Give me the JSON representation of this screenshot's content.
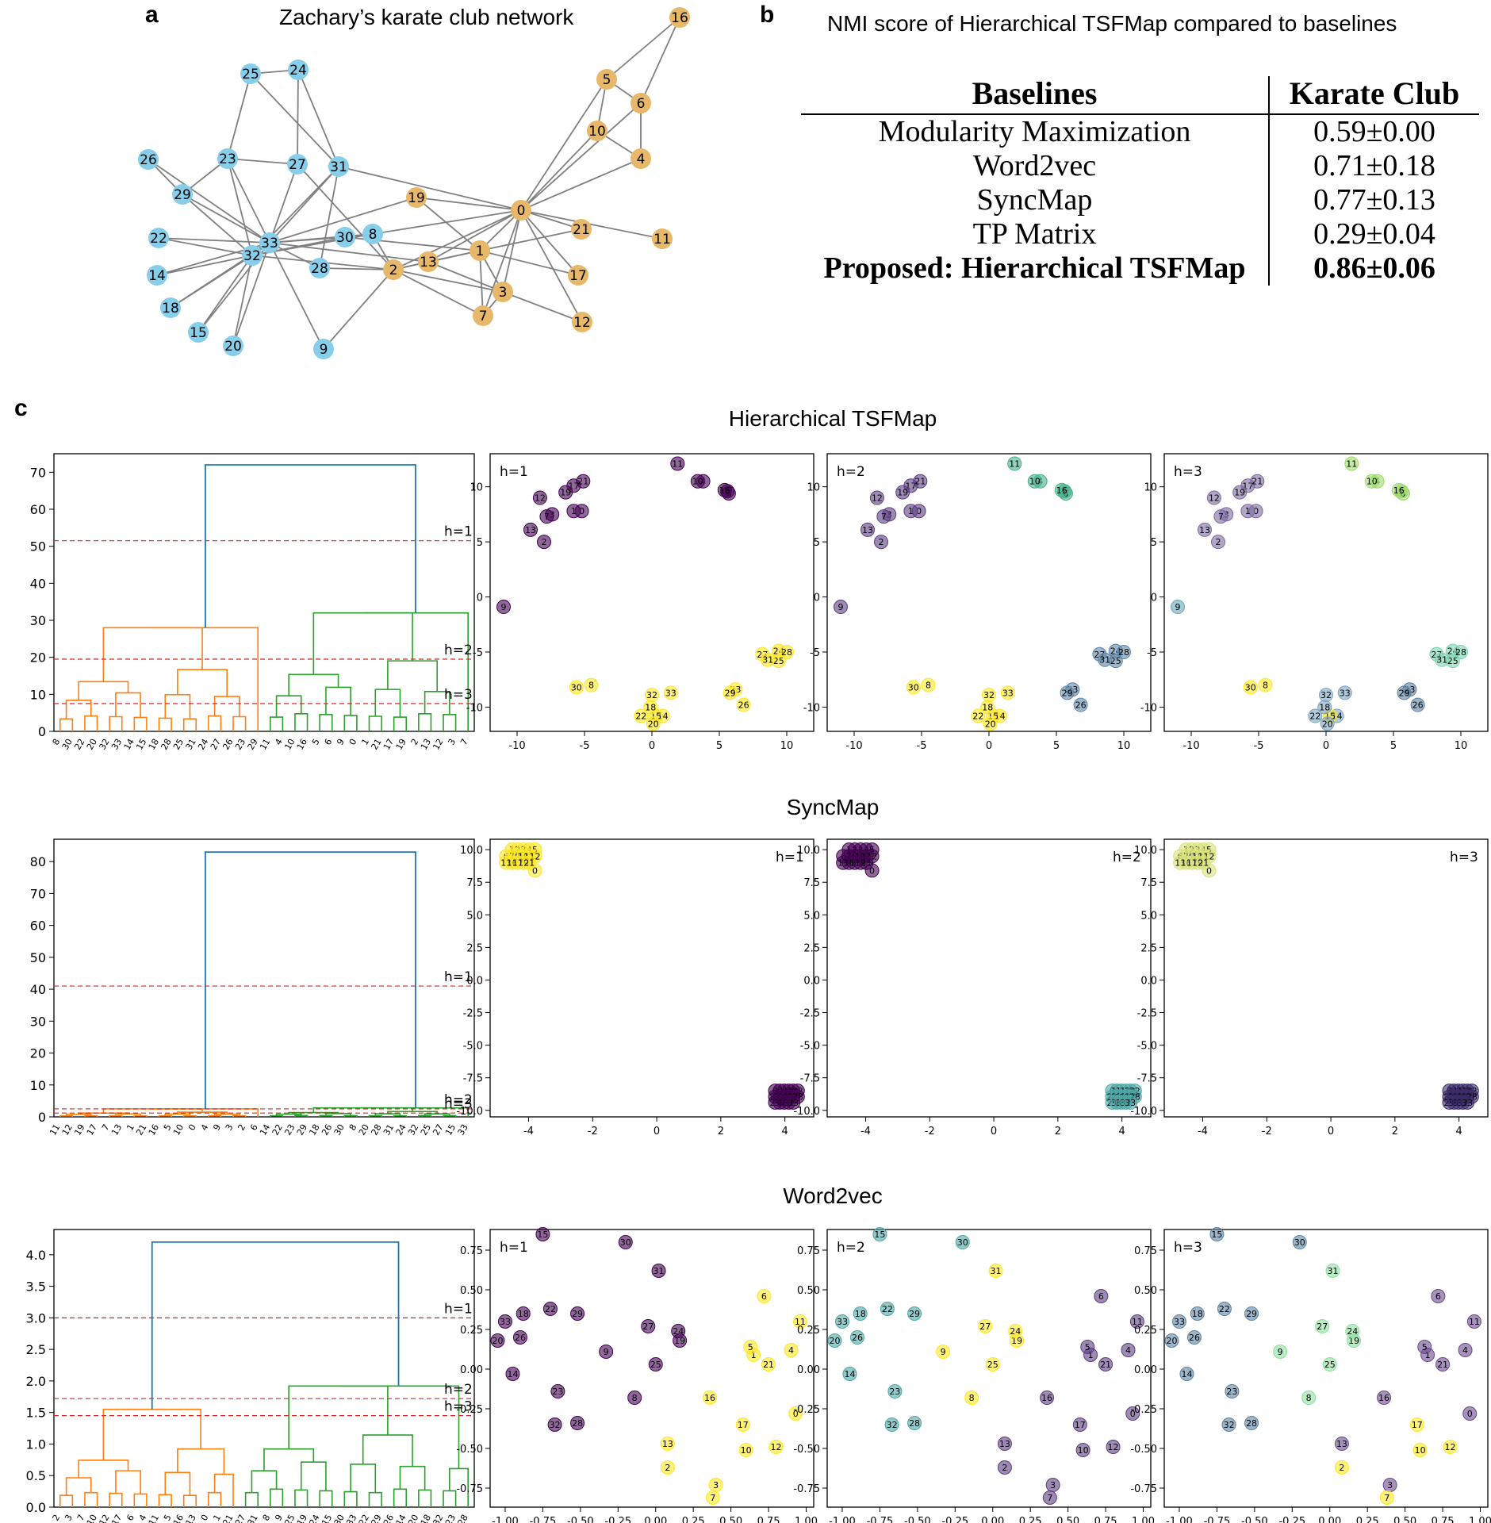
{
  "panel_a": {
    "letter": "a",
    "title": "Zachary’s karate club network",
    "colors": {
      "group1": "#87ceeb",
      "group2": "#e8b86a",
      "edge": "#808080"
    },
    "nodes": [
      "0",
      "1",
      "2",
      "3",
      "4",
      "5",
      "6",
      "7",
      "8",
      "9",
      "10",
      "11",
      "12",
      "13",
      "14",
      "15",
      "16",
      "17",
      "18",
      "19",
      "20",
      "21",
      "22",
      "23",
      "24",
      "25",
      "26",
      "27",
      "28",
      "29",
      "30",
      "31",
      "32",
      "33"
    ],
    "group1": [
      "8",
      "9",
      "14",
      "15",
      "18",
      "20",
      "22",
      "23",
      "24",
      "25",
      "26",
      "27",
      "28",
      "29",
      "30",
      "31",
      "32",
      "33"
    ],
    "group2": [
      "0",
      "1",
      "2",
      "3",
      "4",
      "5",
      "6",
      "7",
      "10",
      "11",
      "12",
      "13",
      "16",
      "17",
      "19",
      "21"
    ]
  },
  "panel_b": {
    "letter": "b",
    "title": "NMI score of Hierarchical TSFMap compared to baselines",
    "headers": [
      "Baselines",
      "Karate Club"
    ],
    "rows": [
      {
        "name": "Modularity Maximization",
        "score": "0.59±0.00"
      },
      {
        "name": "Word2vec",
        "score": "0.71±0.18"
      },
      {
        "name": "SyncMap",
        "score": "0.77±0.13"
      },
      {
        "name": "TP Matrix",
        "score": "0.29±0.04"
      },
      {
        "name": "Proposed: Hierarchical TSFMap",
        "score": "0.86±0.06",
        "bold": true
      }
    ]
  },
  "panel_c": {
    "letter": "c",
    "sections": [
      {
        "title": "Hierarchical TSFMap",
        "dendrogram": {
          "ylim": [
            0,
            75
          ],
          "yticks": [
            "0",
            "10",
            "20",
            "30",
            "40",
            "50",
            "60",
            "70"
          ],
          "cut_heights": [
            51.5,
            19.5,
            7.5
          ],
          "cut_labels": [
            "h=1",
            "h=2",
            "h=3"
          ],
          "leaf_order": [
            "8",
            "30",
            "22",
            "20",
            "32",
            "33",
            "14",
            "15",
            "18",
            "28",
            "25",
            "31",
            "24",
            "27",
            "26",
            "23",
            "29",
            "11",
            "4",
            "10",
            "16",
            "5",
            "6",
            "9",
            "0",
            "1",
            "21",
            "17",
            "19",
            "2",
            "13",
            "12",
            "3",
            "7"
          ],
          "left_cluster_size": 17,
          "root_height": 72,
          "left_height": 28,
          "right_height": 32,
          "colors": {
            "left": "#ff7f0e",
            "right": "#2ca02c",
            "root": "#1f77b4",
            "cut": "#d62728"
          }
        },
        "scatter": {
          "xlim": [
            -12,
            12
          ],
          "ylim": [
            -12.2,
            13
          ],
          "xticks": [
            "-10",
            "-5",
            "0",
            "5",
            "10"
          ],
          "yticks": [
            "-10",
            "-5",
            "0",
            "5",
            "10"
          ],
          "label_position": "top-left",
          "h_labels": [
            "h=1",
            "h=2",
            "h=3"
          ]
        }
      },
      {
        "title": "SyncMap",
        "dendrogram": {
          "ylim": [
            0,
            87
          ],
          "yticks": [
            "0",
            "10",
            "20",
            "30",
            "40",
            "50",
            "60",
            "70",
            "80"
          ],
          "cut_heights": [
            41,
            2.5,
            1.2
          ],
          "cut_labels": [
            "h=1",
            "h=2",
            "h=3"
          ],
          "leaf_order": [
            "11",
            "12",
            "19",
            "17",
            "7",
            "13",
            "1",
            "21",
            "16",
            "5",
            "10",
            "0",
            "4",
            "9",
            "3",
            "2",
            "6",
            "14",
            "22",
            "23",
            "29",
            "18",
            "26",
            "30",
            "8",
            "20",
            "28",
            "31",
            "24",
            "32",
            "25",
            "27",
            "15",
            "33"
          ],
          "left_cluster_size": 17,
          "root_height": 83,
          "left_height": 2.5,
          "right_height": 2.8,
          "colors": {
            "left": "#ff7f0e",
            "right": "#2ca02c",
            "root": "#1f77b4",
            "cut": "#d62728"
          }
        },
        "scatter": {
          "xlim": [
            -5.2,
            4.9
          ],
          "ylim": [
            -10.5,
            10.8
          ],
          "xticks": [
            "-4",
            "-2",
            "0",
            "2",
            "4"
          ],
          "yticks": [
            "-10.0",
            "-7.5",
            "-5.0",
            "-2.5",
            "0.0",
            "2.5",
            "5.0",
            "7.5",
            "10.0"
          ],
          "label_position": "top-right",
          "h_labels": [
            "h=1",
            "h=2",
            "h=3"
          ]
        }
      },
      {
        "title": "Word2vec",
        "dendrogram": {
          "ylim": [
            0,
            4.4
          ],
          "yticks": [
            "0.0",
            "0.5",
            "1.0",
            "1.5",
            "2.0",
            "2.5",
            "3.0",
            "3.5",
            "4.0"
          ],
          "cut_heights": [
            3.0,
            1.72,
            1.45
          ],
          "cut_labels": [
            "h=1",
            "h=2",
            "h=3"
          ],
          "leaf_order": [
            "2",
            "3",
            "7",
            "10",
            "12",
            "17",
            "6",
            "4",
            "11",
            "5",
            "16",
            "13",
            "0",
            "1",
            "21",
            "27",
            "31",
            "8",
            "9",
            "25",
            "19",
            "24",
            "15",
            "30",
            "33",
            "22",
            "29",
            "26",
            "14",
            "20",
            "18",
            "32",
            "23",
            "28"
          ],
          "left_cluster_size": 15,
          "root_height": 4.2,
          "left_height": 1.55,
          "right_height": 1.92,
          "colors": {
            "left": "#ff7f0e",
            "right": "#2ca02c",
            "root": "#1f77b4",
            "cut": "#d62728"
          }
        },
        "scatter": {
          "xlim": [
            -1.1,
            1.05
          ],
          "ylim": [
            -0.87,
            0.88
          ],
          "xticks": [
            "-1.00",
            "-0.75",
            "-0.50",
            "-0.25",
            "0.00",
            "0.25",
            "0.50",
            "0.75",
            "1.00"
          ],
          "yticks": [
            "-0.75",
            "-0.50",
            "-0.25",
            "0.00",
            "0.25",
            "0.50",
            "0.75"
          ],
          "label_position": "top-left",
          "h_labels": [
            "h=1",
            "h=2",
            "h=3"
          ]
        }
      }
    ]
  }
}
